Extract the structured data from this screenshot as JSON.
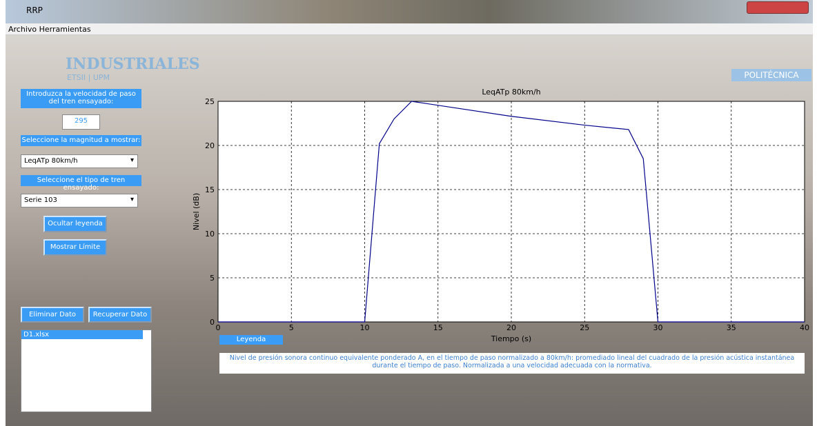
{
  "window": {
    "title": "RRP"
  },
  "menu": [
    "Archivo",
    "Herramientas"
  ],
  "logos": {
    "left": "INDUSTRIALES",
    "left_sub": "ETSII | UPM",
    "right": "POLITÉCNICA"
  },
  "panel": {
    "speed_label": "Introduzca la velocidad de paso del tren ensayado:",
    "speed_value": "295",
    "magnitude_label": "Seleccione la magnitud a mostrar:",
    "magnitude_value": "LeqATp 80km/h",
    "train_label": "Seleccione el tipo de tren ensayado:",
    "train_value": "Serie 103",
    "buttons": [
      "Ocultar leyenda",
      "Mostrar Límite",
      "Eliminar Dato",
      "Recuperar Dato"
    ],
    "files": [
      "D1.xlsx"
    ]
  },
  "legend_panel": {
    "button": "Leyenda",
    "text": "Nivel de presión sonora continuo equivalente ponderado A, en el tiempo de paso normalizado a 80km/h: promediado lineal del cuadrado de la presión acústica instantánea durante el tiempo de paso. Normalizada a una velocidad adecuada con la normativa."
  },
  "chart_data": {
    "type": "line",
    "title": "LeqATp 80km/h",
    "x_label": "Tiempo (s)",
    "y_label": "Nivel (dB)",
    "x": [
      0,
      10,
      11,
      12,
      13.2,
      14,
      20,
      25,
      28,
      29,
      30,
      40
    ],
    "values": [
      0,
      0,
      20.2,
      23,
      25,
      24.8,
      23.3,
      22.3,
      21.8,
      18.5,
      0,
      0
    ],
    "color": "#00008b",
    "xlim": [
      0,
      40
    ],
    "ylim": [
      0,
      25
    ],
    "xticks": [
      0,
      5,
      10,
      15,
      20,
      25,
      30,
      35,
      40
    ],
    "yticks": [
      0,
      5,
      10,
      15,
      20,
      25
    ],
    "grid": true
  }
}
